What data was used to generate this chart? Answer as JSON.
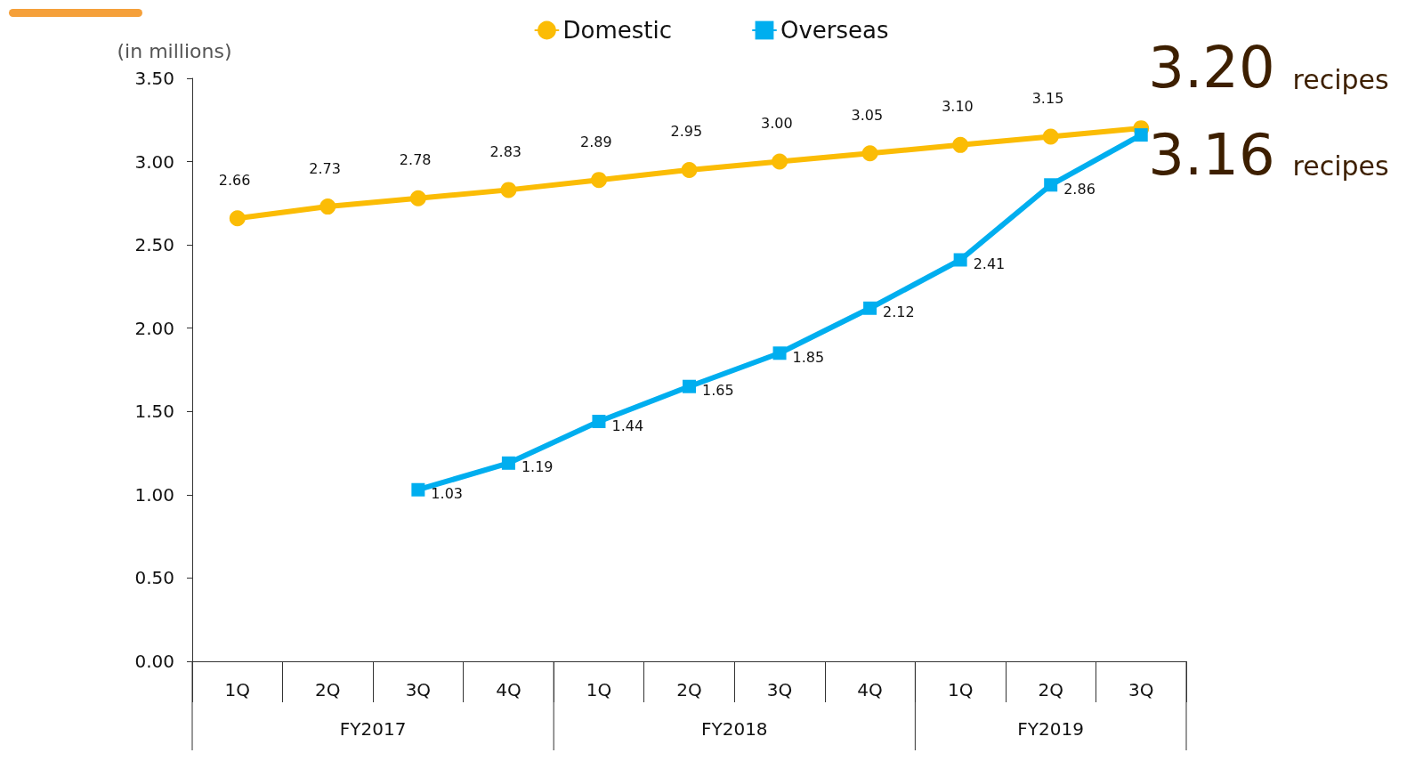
{
  "chart_data": {
    "type": "line",
    "ylabel": "(in millions)",
    "categories": [
      "1Q",
      "2Q",
      "3Q",
      "4Q",
      "1Q",
      "2Q",
      "3Q",
      "4Q",
      "1Q",
      "2Q",
      "3Q"
    ],
    "series": [
      {
        "name": "Domestic",
        "color": "#fbbc05",
        "marker": "circle",
        "values": [
          2.66,
          2.73,
          2.78,
          2.83,
          2.89,
          2.95,
          3.0,
          3.05,
          3.1,
          3.15,
          3.2
        ],
        "value_labels": [
          "2.66",
          "2.73",
          "2.78",
          "2.83",
          "2.89",
          "2.95",
          "3.00",
          "3.05",
          "3.10",
          "3.15",
          null
        ]
      },
      {
        "name": "Overseas",
        "color": "#00aeef",
        "marker": "square",
        "values": [
          null,
          null,
          1.03,
          1.19,
          1.44,
          1.65,
          1.85,
          2.12,
          2.41,
          2.86,
          3.16
        ],
        "value_labels": [
          null,
          null,
          "1.03",
          "1.19",
          "1.44",
          "1.65",
          "1.85",
          "2.12",
          "2.41",
          "2.86",
          null
        ]
      }
    ],
    "ylim": [
      0,
      3.5
    ],
    "yticks": [
      {
        "value": 0,
        "label": "0.00"
      },
      {
        "value": 0.5,
        "label": "0.50"
      },
      {
        "value": 1,
        "label": "1.00"
      },
      {
        "value": 1.5,
        "label": "1.50"
      },
      {
        "value": 2,
        "label": "2.00"
      },
      {
        "value": 2.5,
        "label": "2.50"
      },
      {
        "value": 3,
        "label": "3.00"
      },
      {
        "value": 3.5,
        "label": "3.50"
      }
    ],
    "grid": false,
    "legend": "top",
    "line_style": "solid",
    "annotations": [
      "FY2017",
      "FY2018",
      "FY2019",
      "3.20 recipes",
      "3.16 recipes"
    ]
  }
}
